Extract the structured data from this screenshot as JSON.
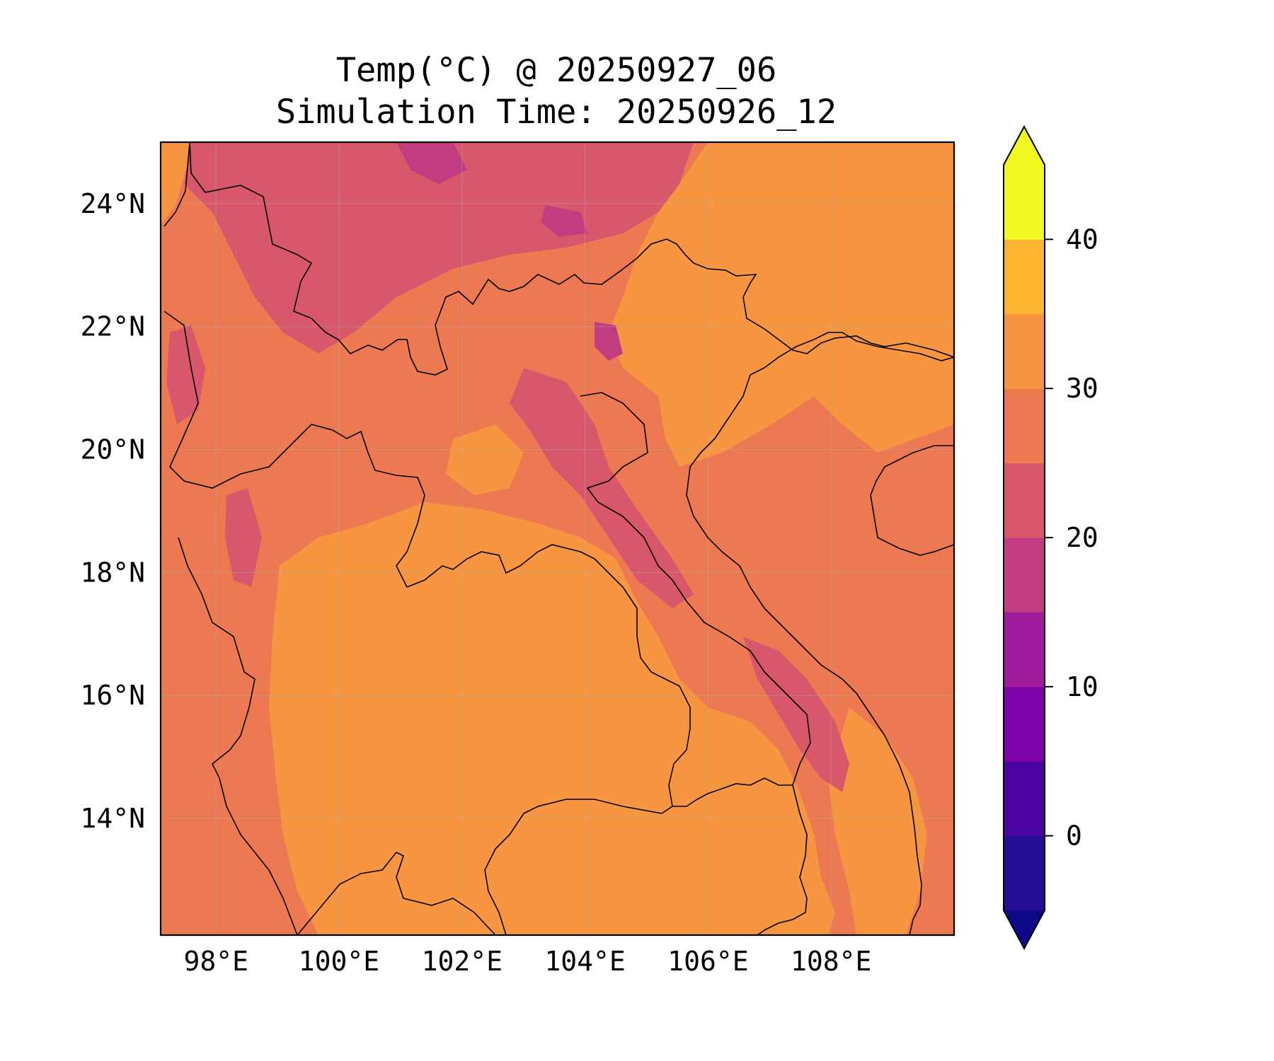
{
  "title": {
    "line1": "Temp(°C) @ 20250927_06",
    "line2": "Simulation Time: 20250926_12"
  },
  "map": {
    "lon_range": [
      97.1,
      110.0
    ],
    "lat_range": [
      12.1,
      25.0
    ],
    "lon_ticks": [
      {
        "value": 98,
        "label": "98°E"
      },
      {
        "value": 100,
        "label": "100°E"
      },
      {
        "value": 102,
        "label": "102°E"
      },
      {
        "value": 104,
        "label": "104°E"
      },
      {
        "value": 106,
        "label": "106°E"
      },
      {
        "value": 108,
        "label": "108°E"
      }
    ],
    "lat_ticks": [
      {
        "value": 24,
        "label": "24°N"
      },
      {
        "value": 22,
        "label": "22°N"
      },
      {
        "value": 20,
        "label": "20°N"
      },
      {
        "value": 18,
        "label": "18°N"
      },
      {
        "value": 16,
        "label": "16°N"
      },
      {
        "value": 14,
        "label": "14°N"
      }
    ],
    "gridlines": true
  },
  "colorbar": {
    "range": [
      -5,
      45
    ],
    "extend": "both",
    "levels": [
      -5,
      0,
      5,
      10,
      15,
      20,
      25,
      30,
      35,
      40,
      45
    ],
    "colors": [
      "#250e94",
      "#4b03a1",
      "#7d03a8",
      "#a01a9c",
      "#c23c81",
      "#d8576b",
      "#ed7953",
      "#f89540",
      "#fdb42f",
      "#f0f921"
    ],
    "under_color": "#0d0887",
    "over_color": "#f0f921",
    "ticks": [
      {
        "value": 0,
        "label": "0"
      },
      {
        "value": 10,
        "label": "10"
      },
      {
        "value": 20,
        "label": "20"
      },
      {
        "value": 30,
        "label": "30"
      },
      {
        "value": 40,
        "label": "40"
      }
    ]
  }
}
